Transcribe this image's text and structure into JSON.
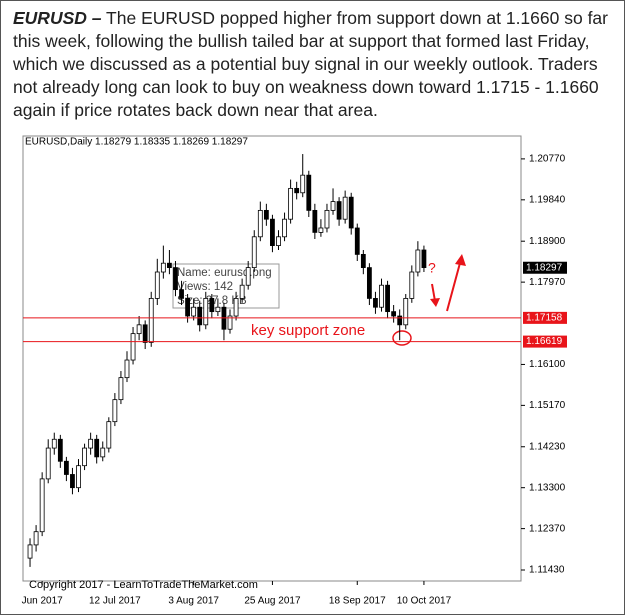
{
  "header": {
    "title": "EURUSD –",
    "text": "The EURUSD popped higher from support down at 1.1660 so far this week, following the bullish tailed bar at support that formed last Friday, which we discussed as a potential buy signal in our weekly outlook. Traders not already long can look to buy on weakness down toward 1.1715 - 1.1660 again if price rotates back down near that area."
  },
  "chart_data": {
    "type": "candlestick",
    "info": "EURUSD,Daily  1.18279 1.18335 1.18269 1.18297",
    "categories": [
      null,
      null,
      "Jun 2017",
      null,
      null,
      null,
      null,
      null,
      null,
      null,
      null,
      null,
      null,
      null,
      "12 Jul 2017",
      null,
      null,
      null,
      null,
      null,
      null,
      null,
      null,
      null,
      null,
      null,
      null,
      "3 Aug 2017",
      null,
      null,
      null,
      null,
      null,
      null,
      null,
      null,
      null,
      null,
      null,
      null,
      "25 Aug 2017",
      null,
      null,
      null,
      null,
      null,
      null,
      null,
      null,
      null,
      null,
      null,
      null,
      null,
      "18 Sep 2017",
      null,
      null,
      null,
      null,
      null,
      null,
      null,
      null,
      null,
      null,
      "10 Oct 2017"
    ],
    "open": [
      1.117,
      1.12,
      1.123,
      1.135,
      1.142,
      1.144,
      1.139,
      1.136,
      1.133,
      1.138,
      1.142,
      1.144,
      1.14,
      1.142,
      1.148,
      1.153,
      1.158,
      1.162,
      1.168,
      1.17,
      1.166,
      1.176,
      1.182,
      1.184,
      1.183,
      1.178,
      1.176,
      1.172,
      1.174,
      1.17,
      1.176,
      1.173,
      1.174,
      1.169,
      1.172,
      1.176,
      1.179,
      1.183,
      1.19,
      1.196,
      1.194,
      1.188,
      1.19,
      1.194,
      1.201,
      1.2,
      1.204,
      1.196,
      1.191,
      1.192,
      1.196,
      1.198,
      1.194,
      1.199,
      1.192,
      1.186,
      1.183,
      1.176,
      1.174,
      1.179,
      1.173,
      1.172,
      1.17,
      1.176,
      1.182,
      1.187
    ],
    "high": [
      1.1215,
      1.1245,
      1.1365,
      1.144,
      1.1455,
      1.145,
      1.14,
      1.1375,
      1.1395,
      1.143,
      1.1455,
      1.145,
      1.1435,
      1.149,
      1.1545,
      1.1595,
      1.164,
      1.1695,
      1.172,
      1.171,
      1.1775,
      1.185,
      1.188,
      1.187,
      1.1845,
      1.18,
      1.177,
      1.176,
      1.1755,
      1.1775,
      1.177,
      1.176,
      1.175,
      1.1735,
      1.1775,
      1.1805,
      1.1845,
      1.1915,
      1.198,
      1.1975,
      1.195,
      1.1915,
      1.1955,
      1.203,
      1.2025,
      1.2088,
      1.205,
      1.1975,
      1.194,
      1.1975,
      1.201,
      1.199,
      1.2005,
      1.2,
      1.193,
      1.187,
      1.184,
      1.1775,
      1.1805,
      1.18,
      1.1745,
      1.1735,
      1.177,
      1.1835,
      1.189,
      1.188
    ],
    "low": [
      1.115,
      1.1185,
      1.122,
      1.134,
      1.1405,
      1.1375,
      1.1345,
      1.1315,
      1.132,
      1.137,
      1.1405,
      1.1385,
      1.139,
      1.141,
      1.147,
      1.152,
      1.157,
      1.161,
      1.1665,
      1.1645,
      1.165,
      1.1745,
      1.1805,
      1.1815,
      1.1765,
      1.1745,
      1.1705,
      1.171,
      1.1685,
      1.169,
      1.1715,
      1.172,
      1.1665,
      1.168,
      1.171,
      1.175,
      1.178,
      1.182,
      1.189,
      1.1925,
      1.1865,
      1.187,
      1.189,
      1.193,
      1.1985,
      1.199,
      1.1945,
      1.1895,
      1.19,
      1.191,
      1.195,
      1.1925,
      1.193,
      1.1905,
      1.1845,
      1.1815,
      1.1745,
      1.1725,
      1.173,
      1.1715,
      1.1705,
      1.1665,
      1.169,
      1.175,
      1.181,
      1.182
    ],
    "close": [
      1.12,
      1.123,
      1.135,
      1.142,
      1.144,
      1.139,
      1.136,
      1.133,
      1.138,
      1.142,
      1.144,
      1.14,
      1.142,
      1.148,
      1.153,
      1.158,
      1.162,
      1.168,
      1.17,
      1.166,
      1.176,
      1.182,
      1.184,
      1.183,
      1.178,
      1.176,
      1.172,
      1.174,
      1.17,
      1.176,
      1.173,
      1.174,
      1.169,
      1.172,
      1.176,
      1.179,
      1.183,
      1.19,
      1.196,
      1.194,
      1.188,
      1.19,
      1.194,
      1.201,
      1.2,
      1.204,
      1.196,
      1.191,
      1.192,
      1.196,
      1.198,
      1.194,
      1.199,
      1.192,
      1.186,
      1.183,
      1.176,
      1.174,
      1.179,
      1.173,
      1.172,
      1.17,
      1.176,
      1.182,
      1.187,
      1.183
    ],
    "ylim": [
      1.1118,
      1.2129
    ],
    "yticks": [
      {
        "value": 1.2077,
        "label": "1.20770"
      },
      {
        "value": 1.1984,
        "label": "1.19840"
      },
      {
        "value": 1.189,
        "label": "1.18900"
      },
      {
        "value": 1.1797,
        "label": "1.17970"
      },
      {
        "value": 1.161,
        "label": "1.16100"
      },
      {
        "value": 1.1517,
        "label": "1.15170"
      },
      {
        "value": 1.1423,
        "label": "1.14230"
      },
      {
        "value": 1.133,
        "label": "1.13300"
      },
      {
        "value": 1.1237,
        "label": "1.12370"
      },
      {
        "value": 1.1143,
        "label": "1.11430"
      }
    ],
    "support_levels": [
      1.17158,
      1.16619
    ],
    "support_color": "#e8141a",
    "last_price": 1.18297,
    "zone_label": "key support zone",
    "question": "?",
    "tooltip": [
      "Name:  eurusd.png",
      "Views: 142",
      "Size:  27.8 KB"
    ],
    "copyright": "Copyright 2017 - LearnToTradeTheMarket.com"
  }
}
